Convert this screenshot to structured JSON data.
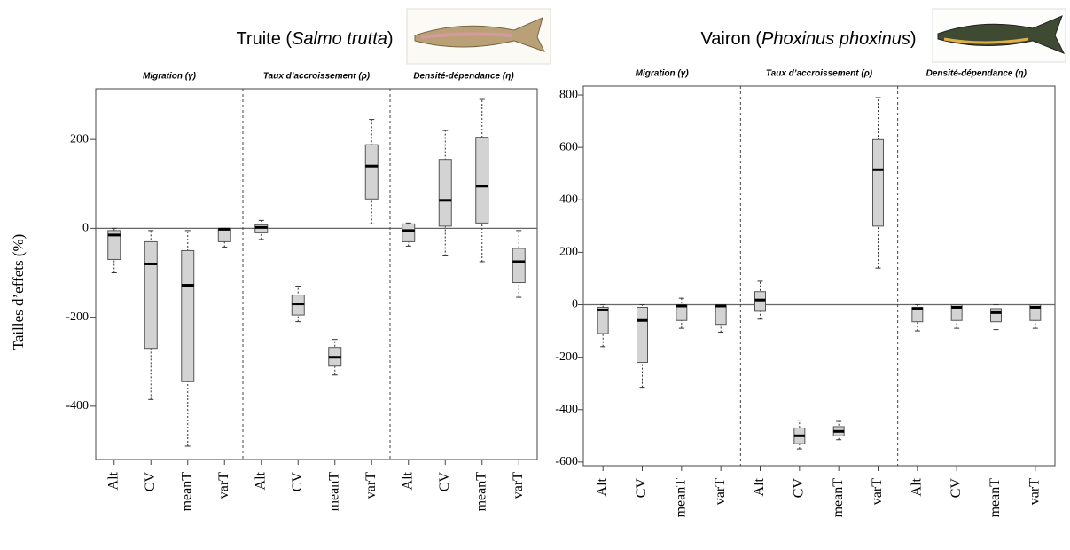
{
  "chart_data": [
    {
      "type": "box",
      "title_prefix": "Truite (",
      "title_italic": "Salmo trutta",
      "title_suffix": ")",
      "ylabel": "Tailles d’effets (%)",
      "groups": [
        "Migration (γ)",
        "Taux d’accroissement (ρ)",
        "Densité-dépendance (η)"
      ],
      "categories": [
        "Alt",
        "CV",
        "meanT",
        "varT",
        "Alt",
        "CV",
        "meanT",
        "varT",
        "Alt",
        "CV",
        "meanT",
        "varT"
      ],
      "color": "#d3d3d3",
      "hline": 0,
      "ylim": [
        -520,
        314
      ],
      "yticks": [
        200,
        0,
        -200,
        -400
      ],
      "values": [
        {
          "min": -100,
          "q1": -70,
          "median": -15,
          "q3": -5,
          "max": 0
        },
        {
          "min": -385,
          "q1": -270,
          "median": -80,
          "q3": -30,
          "max": -5
        },
        {
          "min": -490,
          "q1": -345,
          "median": -128,
          "q3": -50,
          "max": -5
        },
        {
          "min": -42,
          "q1": -30,
          "median": -2,
          "q3": 0,
          "max": 0
        },
        {
          "min": -25,
          "q1": -10,
          "median": 2,
          "q3": 8,
          "max": 18
        },
        {
          "min": -210,
          "q1": -195,
          "median": -170,
          "q3": -150,
          "max": -130
        },
        {
          "min": -330,
          "q1": -310,
          "median": -290,
          "q3": -268,
          "max": -250
        },
        {
          "min": 10,
          "q1": 66,
          "median": 140,
          "q3": 188,
          "max": 245
        },
        {
          "min": -40,
          "q1": -30,
          "median": -5,
          "q3": 10,
          "max": 12
        },
        {
          "min": -62,
          "q1": 5,
          "median": 63,
          "q3": 155,
          "max": 220
        },
        {
          "min": -75,
          "q1": 12,
          "median": 95,
          "q3": 205,
          "max": 290
        },
        {
          "min": -155,
          "q1": -122,
          "median": -75,
          "q3": -45,
          "max": -5
        }
      ]
    },
    {
      "type": "box",
      "title_prefix": "Vairon (",
      "title_italic": "Phoxinus phoxinus",
      "title_suffix": ")",
      "groups": [
        "Migration (γ)",
        "Taux d’accroissement (ρ)",
        "Densité-dépendance (η)"
      ],
      "categories": [
        "Alt",
        "CV",
        "meanT",
        "varT",
        "Alt",
        "CV",
        "meanT",
        "varT",
        "Alt",
        "CV",
        "meanT",
        "varT"
      ],
      "color": "#d3d3d3",
      "hline": 0,
      "ylim": [
        -614,
        834
      ],
      "yticks": [
        800,
        600,
        400,
        200,
        0,
        -200,
        -400,
        -600
      ],
      "values": [
        {
          "min": -160,
          "q1": -110,
          "median": -20,
          "q3": -10,
          "max": 0
        },
        {
          "min": -315,
          "q1": -220,
          "median": -60,
          "q3": -10,
          "max": 0
        },
        {
          "min": -90,
          "q1": -60,
          "median": -5,
          "q3": 0,
          "max": 25
        },
        {
          "min": -105,
          "q1": -75,
          "median": -5,
          "q3": 0,
          "max": 0
        },
        {
          "min": -55,
          "q1": -25,
          "median": 18,
          "q3": 50,
          "max": 90
        },
        {
          "min": -550,
          "q1": -530,
          "median": -500,
          "q3": -470,
          "max": -440
        },
        {
          "min": -515,
          "q1": -500,
          "median": -483,
          "q3": -465,
          "max": -445
        },
        {
          "min": 140,
          "q1": 300,
          "median": 515,
          "q3": 630,
          "max": 790
        },
        {
          "min": -100,
          "q1": -65,
          "median": -15,
          "q3": -10,
          "max": 0
        },
        {
          "min": -90,
          "q1": -60,
          "median": -10,
          "q3": 0,
          "max": 0
        },
        {
          "min": -95,
          "q1": -65,
          "median": -30,
          "q3": -15,
          "max": 0
        },
        {
          "min": -90,
          "q1": -60,
          "median": -10,
          "q3": 0,
          "max": 0
        }
      ]
    }
  ]
}
